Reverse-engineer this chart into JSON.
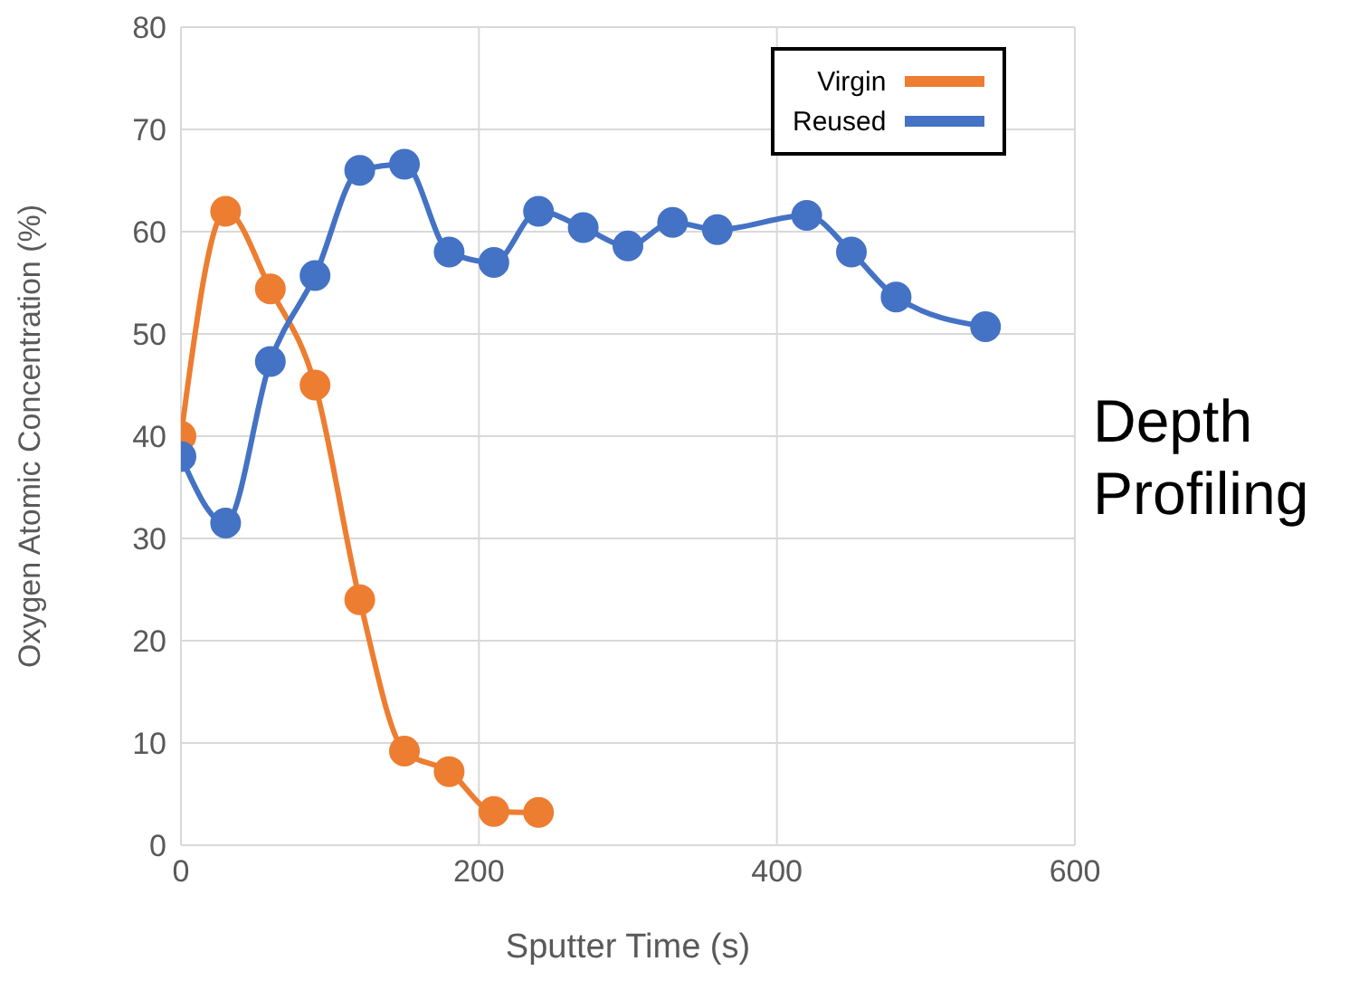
{
  "chart_data": {
    "type": "line",
    "xlabel": "Sputter Time (s)",
    "ylabel": "Oxygen Atomic Concentration (%)",
    "annotations": [
      "Depth Profiling"
    ],
    "xlim": [
      0,
      600
    ],
    "xticks": [
      0,
      200,
      400,
      600
    ],
    "ylim": [
      0,
      80
    ],
    "yticks": [
      0,
      10,
      20,
      30,
      40,
      50,
      60,
      70,
      80
    ],
    "grid": true,
    "legend": "top right",
    "marker": "circle",
    "series": [
      {
        "name": "Virgin",
        "color": "#ed7d31",
        "x": [
          0,
          30,
          60,
          90,
          120,
          150,
          180,
          210,
          240
        ],
        "values": [
          40,
          62,
          54.4,
          45,
          24,
          9.2,
          7.2,
          3.3,
          3.2
        ]
      },
      {
        "name": "Reused",
        "color": "#4472c4",
        "x": [
          0,
          30,
          60,
          90,
          120,
          150,
          180,
          210,
          240,
          270,
          300,
          330,
          360,
          420,
          450,
          480,
          540
        ],
        "values": [
          38,
          31.5,
          47.3,
          55.7,
          66,
          66.6,
          58,
          57,
          62,
          60.4,
          58.6,
          60.9,
          60.2,
          61.6,
          58,
          53.6,
          50.7
        ]
      }
    ]
  }
}
